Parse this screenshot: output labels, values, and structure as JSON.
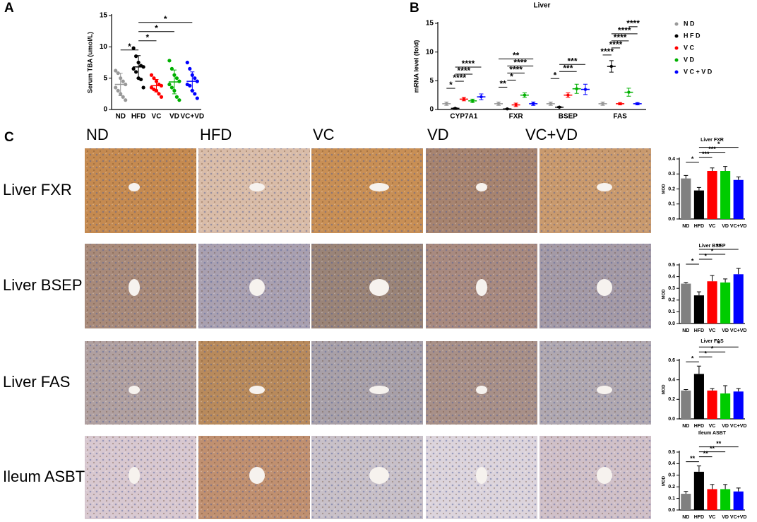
{
  "labels": {
    "a": "A",
    "b": "B",
    "c": "C"
  },
  "micrographs": {
    "columns": [
      "ND",
      "HFD",
      "VC",
      "VD",
      "VC+VD"
    ],
    "rows": [
      "Liver FXR",
      "Liver BSEP",
      "Liver FAS",
      "Ileum ASBT"
    ]
  },
  "chart_data": [
    {
      "type": "dot",
      "ylabel": "Serum TBA (umol/L)",
      "categories": [
        "ND",
        "HFD",
        "VC",
        "VD",
        "VC+VD"
      ],
      "colors": [
        "#999999",
        "#000000",
        "#ff0000",
        "#00b000",
        "#0000ff"
      ],
      "points": [
        [
          6.2,
          5.8,
          5.0,
          4.5,
          4.0,
          3.5,
          3.0,
          2.5,
          2.0,
          1.5
        ],
        [
          9.8,
          8.5,
          7.5,
          7.0,
          6.8,
          6.5,
          6.0,
          5.0,
          4.8,
          3.5
        ],
        [
          5.5,
          5.0,
          4.5,
          4.0,
          3.8,
          3.5,
          3.2,
          3.0,
          2.5,
          2.0
        ],
        [
          7.8,
          6.5,
          5.5,
          5.0,
          4.5,
          4.0,
          3.5,
          3.0,
          2.0,
          1.5
        ],
        [
          7.5,
          6.5,
          5.5,
          5.0,
          4.5,
          4.0,
          3.8,
          3.0,
          2.5,
          1.8
        ]
      ],
      "means": [
        4.0,
        6.8,
        3.8,
        4.4,
        4.5
      ],
      "errors": [
        1.8,
        1.8,
        1.0,
        1.9,
        1.5
      ],
      "ylim": [
        0,
        15
      ],
      "yticks": [
        0,
        5,
        10,
        15
      ],
      "significance": [
        {
          "label": "*",
          "between": [
            0,
            1
          ]
        },
        {
          "label": "*",
          "between": [
            1,
            2
          ]
        },
        {
          "label": "*",
          "between": [
            1,
            3
          ]
        },
        {
          "label": "*",
          "between": [
            1,
            4
          ]
        }
      ]
    },
    {
      "type": "grouped-dot",
      "title": "Liver",
      "ylabel": "mRNA level (fold)",
      "categories": [
        "CYP7A1",
        "FXR",
        "BSEP",
        "FAS"
      ],
      "series": [
        {
          "name": "N D",
          "color": "#999999",
          "means": [
            1,
            1,
            1,
            1
          ],
          "errors": [
            0.3,
            0.3,
            0.3,
            0.3
          ]
        },
        {
          "name": "H F D",
          "color": "#000000",
          "means": [
            0.2,
            0.1,
            0.4,
            7.5
          ],
          "errors": [
            0.1,
            0.05,
            0.1,
            1.0
          ]
        },
        {
          "name": "V C",
          "color": "#ff0000",
          "means": [
            1.8,
            0.8,
            2.5,
            1.0
          ],
          "errors": [
            0.3,
            0.3,
            0.4,
            0.2
          ]
        },
        {
          "name": "V D",
          "color": "#00b000",
          "means": [
            1.5,
            2.5,
            3.6,
            3.0
          ],
          "errors": [
            0.3,
            0.4,
            0.8,
            0.7
          ]
        },
        {
          "name": "V C + V D",
          "color": "#0000ff",
          "means": [
            2.2,
            1.0,
            3.5,
            1.0
          ],
          "errors": [
            0.5,
            0.3,
            0.9,
            0.2
          ]
        }
      ],
      "ylim": [
        0,
        15
      ],
      "yticks": [
        0,
        5,
        10,
        15
      ],
      "significance": [
        {
          "category": 0,
          "label": "*",
          "between": [
            0,
            1
          ]
        },
        {
          "category": 0,
          "label": "****",
          "between": [
            1,
            2
          ]
        },
        {
          "category": 0,
          "label": "****",
          "between": [
            1,
            3
          ]
        },
        {
          "category": 0,
          "label": "****",
          "between": [
            1,
            4
          ]
        },
        {
          "category": 1,
          "label": "**",
          "between": [
            0,
            1
          ]
        },
        {
          "category": 1,
          "label": "*",
          "between": [
            1,
            2
          ]
        },
        {
          "category": 1,
          "label": "****",
          "between": [
            1,
            3
          ]
        },
        {
          "category": 1,
          "label": "****",
          "between": [
            1,
            4
          ]
        },
        {
          "category": 1,
          "label": "**",
          "between": [
            0,
            4
          ]
        },
        {
          "category": 2,
          "label": "*",
          "between": [
            0,
            1
          ]
        },
        {
          "category": 2,
          "label": "***",
          "between": [
            1,
            3
          ]
        },
        {
          "category": 2,
          "label": "***",
          "between": [
            1,
            4
          ]
        },
        {
          "category": 3,
          "label": "****",
          "between": [
            0,
            1
          ]
        },
        {
          "category": 3,
          "label": "****",
          "between": [
            1,
            2
          ]
        },
        {
          "category": 3,
          "label": "****",
          "between": [
            1,
            3
          ]
        },
        {
          "category": 3,
          "label": "****",
          "between": [
            1,
            4
          ]
        },
        {
          "category": 3,
          "label": "****",
          "between": [
            3,
            4
          ]
        }
      ]
    },
    {
      "type": "bar",
      "title": "Liver FXR",
      "ylabel": "MOD",
      "categories": [
        "ND",
        "HFD",
        "VC",
        "VD",
        "VC+VD"
      ],
      "colors": [
        "#808080",
        "#000000",
        "#ff0000",
        "#00cc00",
        "#0000ff"
      ],
      "values": [
        0.27,
        0.19,
        0.32,
        0.32,
        0.26
      ],
      "errors": [
        0.02,
        0.02,
        0.02,
        0.03,
        0.02
      ],
      "ylim": [
        0,
        0.4
      ],
      "yticks": [
        {
          "value": 0,
          "label": "0.0"
        },
        0.1,
        0.2,
        0.3,
        0.4
      ],
      "significance": [
        {
          "label": "*",
          "between": [
            0,
            1
          ]
        },
        {
          "label": "***",
          "between": [
            1,
            2
          ]
        },
        {
          "label": "***",
          "between": [
            1,
            3
          ]
        },
        {
          "label": "*",
          "between": [
            1,
            4
          ]
        }
      ]
    },
    {
      "type": "bar",
      "title": "Liver BSEP",
      "ylabel": "MOD",
      "categories": [
        "ND",
        "HFD",
        "VC",
        "VD",
        "VC+VD"
      ],
      "colors": [
        "#808080",
        "#000000",
        "#ff0000",
        "#00cc00",
        "#0000ff"
      ],
      "values": [
        0.34,
        0.24,
        0.36,
        0.35,
        0.42
      ],
      "errors": [
        0.01,
        0.03,
        0.05,
        0.03,
        0.05
      ],
      "ylim": [
        0,
        0.5
      ],
      "yticks": [
        {
          "value": 0,
          "label": "0.0"
        },
        0.1,
        0.2,
        0.3,
        0.4,
        0.5
      ],
      "significance": [
        {
          "label": "*",
          "between": [
            0,
            1
          ]
        },
        {
          "label": "*",
          "between": [
            1,
            2
          ]
        },
        {
          "label": "*",
          "between": [
            1,
            3
          ]
        },
        {
          "label": "**",
          "between": [
            1,
            4
          ]
        }
      ]
    },
    {
      "type": "bar",
      "title": "Liver FAS",
      "ylabel": "MOD",
      "categories": [
        "ND",
        "HFD",
        "VC",
        "VD",
        "VC+VD"
      ],
      "colors": [
        "#808080",
        "#000000",
        "#ff0000",
        "#00cc00",
        "#0000ff"
      ],
      "values": [
        0.29,
        0.46,
        0.29,
        0.26,
        0.28
      ],
      "errors": [
        0.01,
        0.08,
        0.02,
        0.08,
        0.03
      ],
      "ylim": [
        0,
        0.6
      ],
      "yticks": [
        {
          "value": 0,
          "label": "0.0"
        },
        0.2,
        0.4,
        0.6
      ],
      "significance": [
        {
          "label": "*",
          "between": [
            0,
            1
          ]
        },
        {
          "label": "*",
          "between": [
            1,
            2
          ]
        },
        {
          "label": "*",
          "between": [
            1,
            3
          ]
        },
        {
          "label": "*",
          "between": [
            1,
            4
          ]
        }
      ]
    },
    {
      "type": "bar",
      "title": "Ileum ASBT",
      "ylabel": "MOD",
      "categories": [
        "ND",
        "HFD",
        "VC",
        "VD",
        "VC+VD"
      ],
      "colors": [
        "#808080",
        "#000000",
        "#ff0000",
        "#00cc00",
        "#0000ff"
      ],
      "values": [
        0.14,
        0.33,
        0.18,
        0.18,
        0.16
      ],
      "errors": [
        0.02,
        0.05,
        0.04,
        0.04,
        0.03
      ],
      "ylim": [
        0,
        0.5
      ],
      "yticks": [
        {
          "value": 0,
          "label": "0.0"
        },
        0.1,
        0.2,
        0.3,
        0.4,
        0.5
      ],
      "significance": [
        {
          "label": "**",
          "between": [
            0,
            1
          ]
        },
        {
          "label": "**",
          "between": [
            1,
            2
          ]
        },
        {
          "label": "**",
          "between": [
            1,
            3
          ]
        },
        {
          "label": "**",
          "between": [
            1,
            4
          ]
        }
      ]
    }
  ]
}
